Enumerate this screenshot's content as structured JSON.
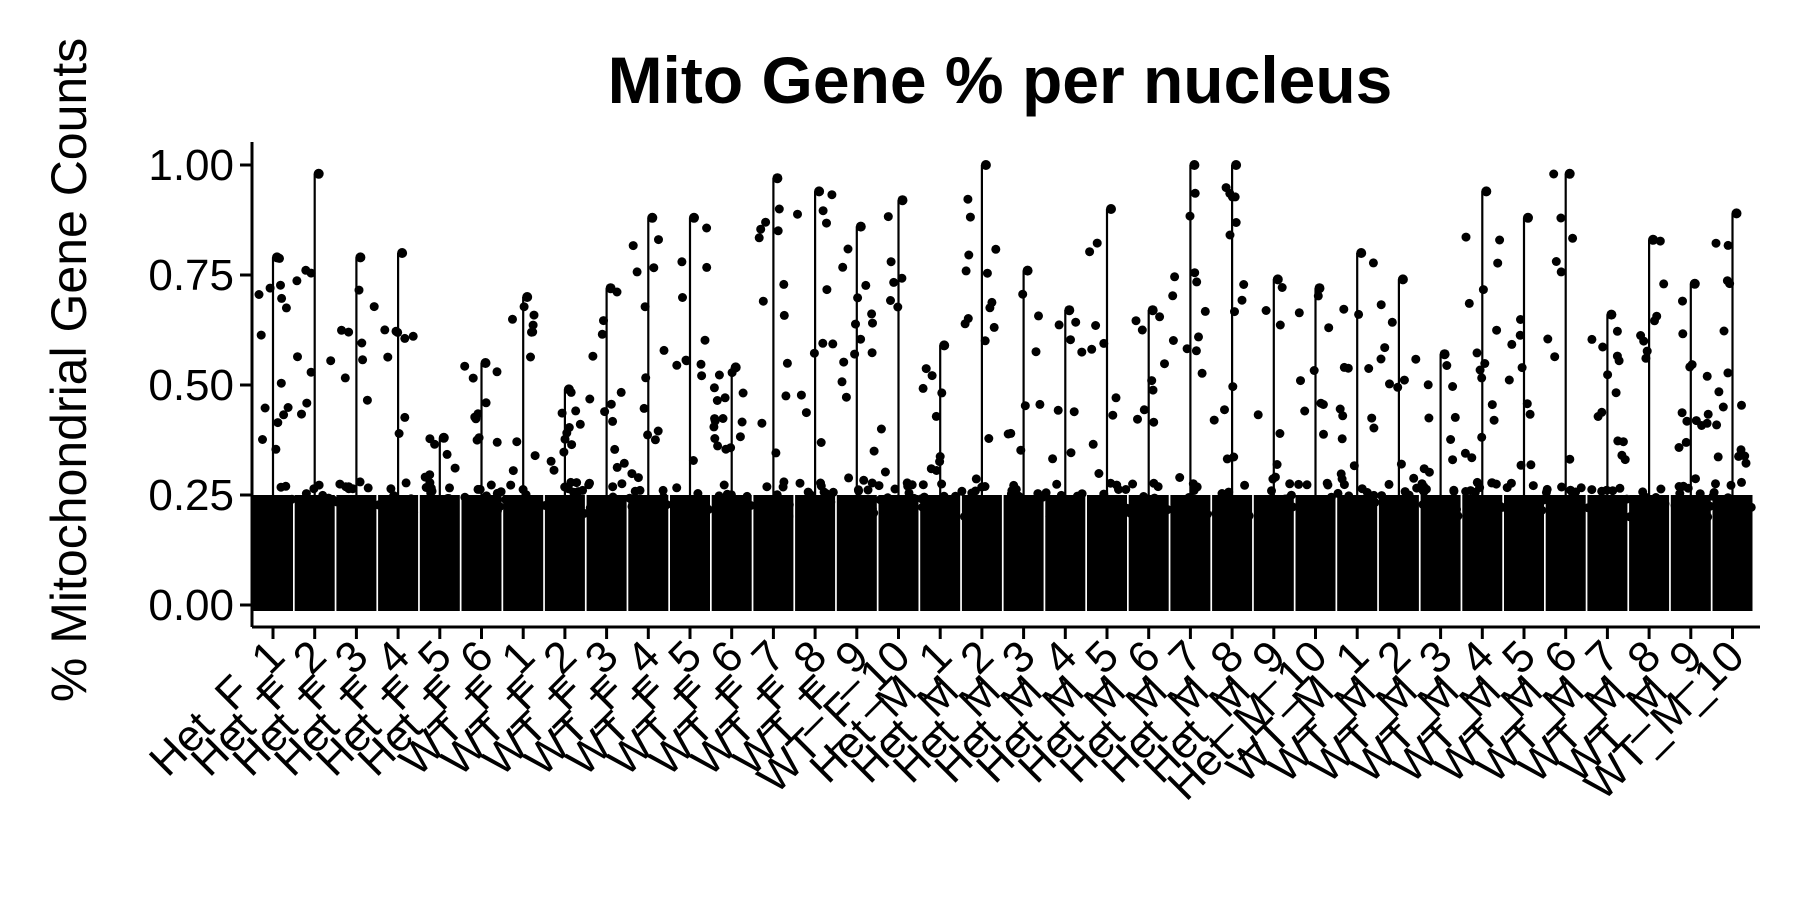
{
  "chart_data": {
    "type": "scatter",
    "title": "Mito Gene % per nucleus",
    "xlabel": "",
    "ylabel": "% Mitochondrial Gene Counts",
    "ylim": [
      0,
      1.05
    ],
    "yticks": [
      "0.00",
      "0.25",
      "0.50",
      "0.75",
      "1.00"
    ],
    "ytick_values": [
      0,
      0.25,
      0.5,
      0.75,
      1.0
    ],
    "categories": [
      "Het_F_1",
      "Het_F_2",
      "Het_F_3",
      "Het_F_4",
      "Het_F_5",
      "Het_F_6",
      "WT_F_1",
      "WT_F_2",
      "WT_F_3",
      "WT_F_4",
      "WT_F_5",
      "WT_F_6",
      "WT_F_7",
      "WT_F_8",
      "WT_F_9",
      "WT_F_10",
      "Het_M_1",
      "Het_M_2",
      "Het_M_3",
      "Het_M_4",
      "Het_M_5",
      "Het_M_6",
      "Het_M_7",
      "Het_M_8",
      "Het_M_9",
      "Het_M_10",
      "WT_M_1",
      "WT_M_2",
      "WT_M_3",
      "WT_M_4",
      "WT_M_5",
      "WT_M_6",
      "WT_M_7",
      "WT_M_8",
      "WT_M_9",
      "WT_M_10"
    ],
    "series": [
      {
        "values_max": [
          0.79,
          0.98,
          0.79,
          0.8,
          0.38,
          0.55,
          0.7,
          0.49,
          0.72,
          0.88,
          0.88,
          0.54,
          0.97,
          0.94,
          0.86,
          0.92,
          0.59,
          1.0,
          0.76,
          0.67,
          0.9,
          0.67,
          1.0,
          1.0,
          0.74,
          0.72,
          0.8,
          0.74,
          0.57,
          0.94,
          0.88,
          0.98,
          0.66,
          0.83,
          0.73,
          0.89
        ]
      }
    ],
    "bulk_range": [
      0.0,
      0.25
    ],
    "grid": false,
    "legend": "none",
    "point_color": "#000000"
  }
}
